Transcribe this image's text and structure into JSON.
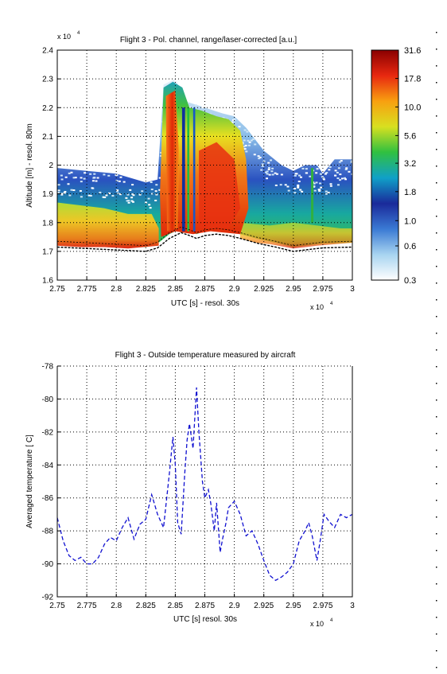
{
  "chart_data": [
    {
      "type": "heatmap",
      "title": "Flight 3 - Pol. channel, range/laser-corrected [a.u.]",
      "xlabel": "UTC [s] - resol. 30s",
      "ylabel": "Altitude [m] - resol. 80m",
      "x_exponent": "x 10",
      "x_exponent_power": "4",
      "y_exponent": "x 10",
      "y_exponent_power": "4",
      "xlim": [
        2.75,
        3.0
      ],
      "ylim": [
        1.6,
        2.4
      ],
      "x_ticks": [
        "2.75",
        "2.775",
        "2.8",
        "2.825",
        "2.85",
        "2.875",
        "2.9",
        "2.925",
        "2.95",
        "2.975",
        "3"
      ],
      "y_ticks": [
        "1.6",
        "1.7",
        "1.8",
        "1.9",
        "2",
        "2.1",
        "2.2",
        "2.3",
        "2.4"
      ],
      "grid": true,
      "colorbar": {
        "tick_labels": [
          "0.3",
          "0.6",
          "1.0",
          "1.8",
          "3.2",
          "5.6",
          "10.0",
          "17.8",
          "31.6"
        ],
        "scale": "log",
        "range": [
          0.3,
          31.6
        ],
        "colormap": [
          "#ffffff",
          "#a8d4f0",
          "#3a7ad4",
          "#1a2a9a",
          "#10a0c8",
          "#30c040",
          "#d8e020",
          "#f8a010",
          "#e82810",
          "#8a0000"
        ]
      },
      "aircraft_track_altitude": {
        "x": [
          2.75,
          2.775,
          2.8,
          2.825,
          2.835,
          2.845,
          2.855,
          2.862,
          2.868,
          2.875,
          2.885,
          2.895,
          2.905,
          2.92,
          2.935,
          2.95,
          2.96,
          2.975,
          3.0
        ],
        "y": [
          1.715,
          1.71,
          1.705,
          1.7,
          1.712,
          1.745,
          1.765,
          1.755,
          1.745,
          1.755,
          1.76,
          1.755,
          1.745,
          1.728,
          1.715,
          1.7,
          1.705,
          1.712,
          1.715
        ]
      },
      "cloud_top_altitude": {
        "x": [
          2.75,
          2.775,
          2.8,
          2.825,
          2.835,
          2.84,
          2.85,
          2.86,
          2.875,
          2.89,
          2.9,
          2.91,
          2.925,
          2.94,
          2.95,
          2.96,
          2.97,
          2.975,
          2.985,
          3.0
        ],
        "y": [
          1.99,
          1.98,
          1.97,
          1.94,
          1.95,
          2.28,
          2.3,
          2.22,
          2.2,
          2.18,
          2.17,
          2.13,
          2.05,
          2.0,
          1.98,
          2.0,
          2.0,
          1.97,
          2.02,
          2.02
        ]
      }
    },
    {
      "type": "line",
      "title": "Flight 3 - Outside temperature measured by aircraft",
      "xlabel": "UTC [s] resol. 30s",
      "ylabel": "Averaged temperature [ C]",
      "x_exponent": "x 10",
      "x_exponent_power": "4",
      "xlim": [
        2.75,
        3.0
      ],
      "ylim": [
        -92,
        -78
      ],
      "x_ticks": [
        "2.75",
        "2.775",
        "2.8",
        "2.825",
        "2.85",
        "2.875",
        "2.9",
        "2.925",
        "2.95",
        "2.975",
        "3"
      ],
      "y_ticks": [
        "-78",
        "-80",
        "-82",
        "-84",
        "-86",
        "-88",
        "-90",
        "-92"
      ],
      "grid": true,
      "line_color": "#1010d0",
      "line_style": "dashed",
      "x": [
        2.75,
        2.755,
        2.76,
        2.765,
        2.77,
        2.775,
        2.78,
        2.785,
        2.79,
        2.795,
        2.8,
        2.805,
        2.81,
        2.815,
        2.82,
        2.825,
        2.83,
        2.835,
        2.84,
        2.842,
        2.845,
        2.848,
        2.85,
        2.852,
        2.855,
        2.858,
        2.86,
        2.862,
        2.865,
        2.868,
        2.87,
        2.873,
        2.875,
        2.878,
        2.88,
        2.883,
        2.885,
        2.888,
        2.89,
        2.893,
        2.895,
        2.9,
        2.905,
        2.91,
        2.915,
        2.92,
        2.925,
        2.93,
        2.935,
        2.94,
        2.945,
        2.95,
        2.955,
        2.96,
        2.963,
        2.966,
        2.97,
        2.973,
        2.976,
        2.98,
        2.985,
        2.99,
        2.995,
        3.0
      ],
      "values": [
        -87.2,
        -88.6,
        -89.5,
        -89.8,
        -89.6,
        -90.0,
        -90.0,
        -89.6,
        -88.8,
        -88.4,
        -88.6,
        -87.8,
        -87.2,
        -88.5,
        -87.6,
        -87.3,
        -85.8,
        -87.0,
        -87.8,
        -86.5,
        -84.5,
        -82.3,
        -84.0,
        -87.5,
        -88.2,
        -84.5,
        -82.5,
        -81.5,
        -83.0,
        -79.3,
        -82.0,
        -85.0,
        -86.0,
        -85.5,
        -86.3,
        -88.0,
        -86.3,
        -89.3,
        -88.5,
        -87.5,
        -86.6,
        -86.2,
        -87.0,
        -88.3,
        -88.0,
        -88.8,
        -89.8,
        -90.7,
        -91.0,
        -90.8,
        -90.5,
        -90.0,
        -88.6,
        -88.0,
        -87.5,
        -88.3,
        -89.8,
        -88.5,
        -87.0,
        -87.4,
        -87.8,
        -87.0,
        -87.2,
        -87.0
      ]
    }
  ]
}
